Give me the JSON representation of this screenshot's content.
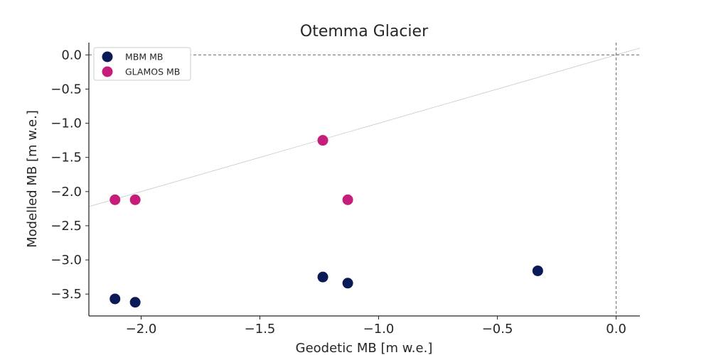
{
  "chart_data": {
    "type": "scatter",
    "title": "Otemma Glacier",
    "xlabel": "Geodetic MB [m w.e.]",
    "ylabel": "Modelled MB [m w.e.]",
    "xlim": [
      -2.22,
      0.1
    ],
    "ylim": [
      -3.82,
      0.18
    ],
    "xticks": [
      -2.0,
      -1.5,
      -1.0,
      -0.5,
      0.0
    ],
    "xtick_labels": [
      "−2.0",
      "−1.5",
      "−1.0",
      "−0.5",
      "0.0"
    ],
    "yticks": [
      0.0,
      -0.5,
      -1.0,
      -1.5,
      -2.0,
      -2.5,
      -3.0,
      -3.5
    ],
    "ytick_labels": [
      "0.0",
      "−0.5",
      "−1.0",
      "−1.5",
      "−2.0",
      "−2.5",
      "−3.0",
      "−3.5"
    ],
    "grid": false,
    "legend_position": "top-left",
    "reference_lines": {
      "identity_line": true,
      "zero_horizontal": true,
      "zero_vertical": true
    },
    "series": [
      {
        "name": "MBM MB",
        "color": "#0a1a57",
        "points": [
          {
            "x": -2.11,
            "y": -3.57
          },
          {
            "x": -2.025,
            "y": -3.62
          },
          {
            "x": -1.235,
            "y": -3.25
          },
          {
            "x": -1.13,
            "y": -3.34
          },
          {
            "x": -0.33,
            "y": -3.16
          }
        ]
      },
      {
        "name": "GLAMOS MB",
        "color": "#c41e7a",
        "points": [
          {
            "x": -2.11,
            "y": -2.12
          },
          {
            "x": -2.025,
            "y": -2.12
          },
          {
            "x": -1.235,
            "y": -1.25
          },
          {
            "x": -1.13,
            "y": -2.12
          }
        ]
      }
    ]
  }
}
